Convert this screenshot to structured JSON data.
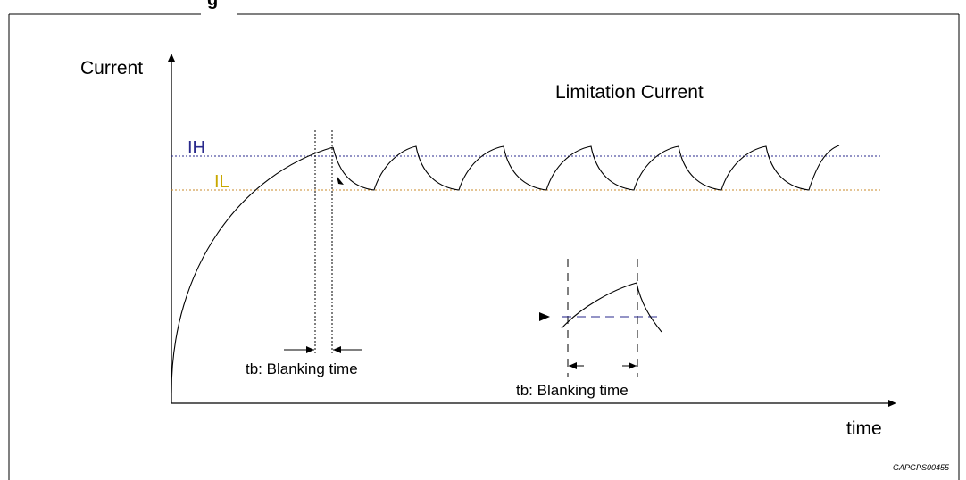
{
  "header_partial_text": "g",
  "y_axis_label": "Current",
  "x_axis_label": "time",
  "title": "Limitation Current",
  "ih_label": "IH",
  "il_label": "IL",
  "blanking_label_1": "tb: Blanking time",
  "blanking_label_2": "tb: Blanking time",
  "figure_code": "GAPGPS00455",
  "colors": {
    "ih": "#2a2a8c",
    "il": "#c88a2a",
    "ih_text": "#2a2a8c",
    "il_text": "#c9a800",
    "ink": "#000000"
  }
}
